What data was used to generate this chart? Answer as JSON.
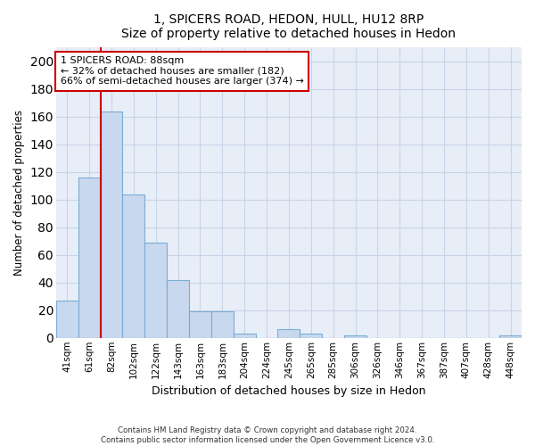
{
  "title": "1, SPICERS ROAD, HEDON, HULL, HU12 8RP",
  "subtitle": "Size of property relative to detached houses in Hedon",
  "xlabel": "Distribution of detached houses by size in Hedon",
  "ylabel": "Number of detached properties",
  "bar_labels": [
    "41sqm",
    "61sqm",
    "82sqm",
    "102sqm",
    "122sqm",
    "143sqm",
    "163sqm",
    "183sqm",
    "204sqm",
    "224sqm",
    "245sqm",
    "265sqm",
    "285sqm",
    "306sqm",
    "326sqm",
    "346sqm",
    "367sqm",
    "387sqm",
    "407sqm",
    "428sqm",
    "448sqm"
  ],
  "bar_values": [
    27,
    116,
    164,
    104,
    69,
    42,
    19,
    19,
    3,
    0,
    6,
    3,
    0,
    2,
    0,
    0,
    0,
    0,
    0,
    0,
    2
  ],
  "bar_color": "#c8d8ee",
  "bar_edge_color": "#7aadd4",
  "vline_x": 2,
  "vline_color": "#cc0000",
  "ylim": [
    0,
    210
  ],
  "yticks": [
    0,
    20,
    40,
    60,
    80,
    100,
    120,
    140,
    160,
    180,
    200
  ],
  "annotation_title": "1 SPICERS ROAD: 88sqm",
  "annotation_line1": "← 32% of detached houses are smaller (182)",
  "annotation_line2": "66% of semi-detached houses are larger (374) →",
  "annotation_box_edge": "#cc0000",
  "footer_line1": "Contains HM Land Registry data © Crown copyright and database right 2024.",
  "footer_line2": "Contains public sector information licensed under the Open Government Licence v3.0.",
  "background_color": "#e8eef8",
  "grid_color": "#c8d4e8"
}
